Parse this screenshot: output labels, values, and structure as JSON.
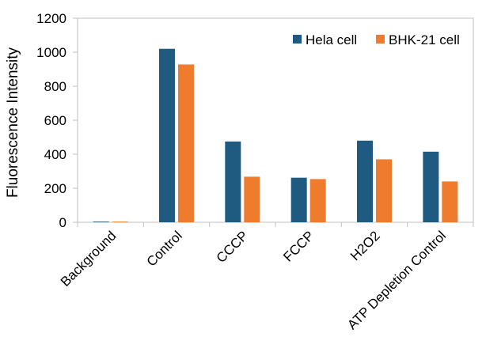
{
  "chart_data": {
    "type": "bar",
    "categories": [
      "Background",
      "Control",
      "CCCP",
      "FCCP",
      "H2O2",
      "ATP Depletion Control"
    ],
    "series": [
      {
        "name": "Hela cell",
        "color": "#1f5a80",
        "values": [
          4,
          1020,
          475,
          262,
          480,
          415
        ]
      },
      {
        "name": "BHK-21 cell",
        "color": "#ef7b2e",
        "values": [
          4,
          928,
          268,
          254,
          370,
          240
        ]
      }
    ],
    "title": "",
    "xlabel": "",
    "ylabel": "Fluorescence Intensity",
    "ylim": [
      0,
      1200
    ],
    "yticks": [
      0,
      200,
      400,
      600,
      800,
      1000,
      1200
    ],
    "grid": false,
    "legend_position": "top-right"
  }
}
